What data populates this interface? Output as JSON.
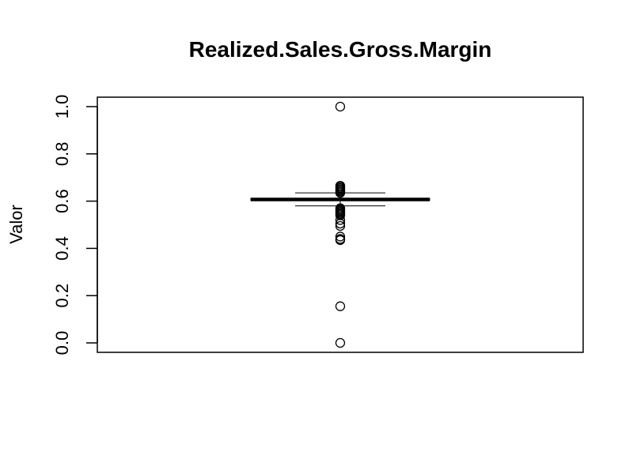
{
  "chart_data": {
    "type": "boxplot",
    "title": "Realized.Sales.Gross.Margin",
    "xlabel": "",
    "ylabel": "Valor",
    "ylim": [
      -0.04,
      1.04
    ],
    "yticks": [
      0.0,
      0.2,
      0.4,
      0.6,
      0.8,
      1.0
    ],
    "ytick_labels": [
      "0.0",
      "0.2",
      "0.4",
      "0.6",
      "0.8",
      "1.0"
    ],
    "grid": false,
    "box": {
      "q1": 0.603,
      "median": 0.607,
      "q3": 0.611,
      "whisker_low": 0.58,
      "whisker_high": 0.635
    },
    "outliers": [
      1.0,
      0.665,
      0.66,
      0.655,
      0.65,
      0.645,
      0.64,
      0.635,
      0.57,
      0.565,
      0.56,
      0.555,
      0.55,
      0.545,
      0.54,
      0.52,
      0.505,
      0.495,
      0.45,
      0.44,
      0.435,
      0.155,
      0.0
    ],
    "colors": {
      "stroke": "#000000",
      "background": "#ffffff"
    }
  }
}
